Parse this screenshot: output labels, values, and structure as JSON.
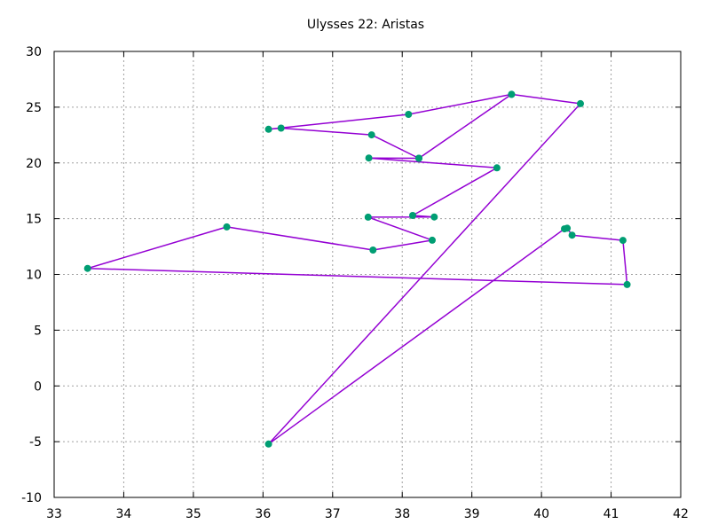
{
  "chart_data": {
    "type": "line",
    "title": "Ulysses 22: Aristas",
    "xlabel": "",
    "ylabel": "",
    "xlim": [
      33,
      42
    ],
    "ylim": [
      -10,
      30
    ],
    "x_ticks": [
      33,
      34,
      35,
      36,
      37,
      38,
      39,
      40,
      41,
      42
    ],
    "y_ticks": [
      -10,
      -5,
      0,
      5,
      10,
      15,
      20,
      25,
      30
    ],
    "grid": true,
    "legend": "none",
    "colors": {
      "line": "#9400d3",
      "marker": "#009e73",
      "grid": "#a0a0a0",
      "frame": "#000000"
    },
    "series": [
      {
        "points": [
          [
            38.24,
            20.42
          ],
          [
            39.57,
            26.15
          ],
          [
            40.56,
            25.32
          ],
          [
            36.08,
            -5.21
          ],
          [
            40.33,
            14.09
          ],
          [
            40.37,
            14.14
          ],
          [
            40.44,
            13.52
          ],
          [
            41.17,
            13.05
          ],
          [
            41.23,
            9.09
          ],
          [
            33.48,
            10.54
          ],
          [
            35.48,
            14.26
          ],
          [
            37.58,
            12.19
          ],
          [
            38.43,
            13.07
          ],
          [
            37.51,
            15.14
          ],
          [
            38.46,
            15.15
          ],
          [
            38.15,
            15.29
          ],
          [
            39.36,
            19.56
          ],
          [
            37.52,
            20.44
          ],
          [
            38.24,
            20.42
          ],
          [
            37.56,
            22.52
          ],
          [
            36.26,
            23.12
          ],
          [
            36.08,
            23.02
          ],
          [
            38.09,
            24.35
          ],
          [
            39.57,
            26.15
          ]
        ]
      }
    ]
  }
}
